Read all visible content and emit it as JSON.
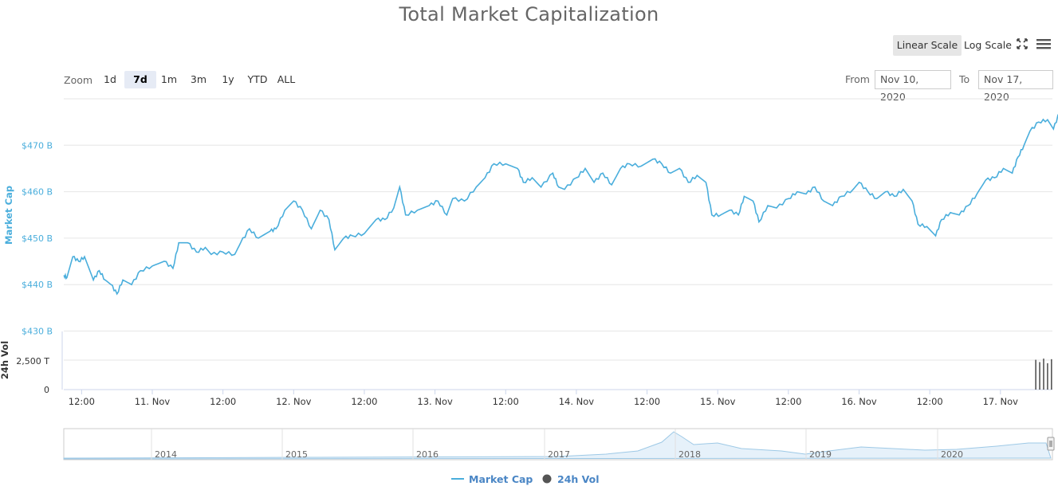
{
  "title": "Total Market Capitalization",
  "toolbar": {
    "linear_scale": "Linear Scale",
    "log_scale": "Log Scale",
    "expand_icon": "expand-arrows-icon",
    "menu_icon": "hamburger-menu-icon"
  },
  "zoom": {
    "label": "Zoom",
    "buttons": [
      "1d",
      "7d",
      "1m",
      "3m",
      "1y",
      "YTD",
      "ALL"
    ],
    "active": "7d"
  },
  "range": {
    "from_label": "From",
    "from_value": "Nov 10, 2020",
    "to_label": "To",
    "to_value": "Nov 17, 2020"
  },
  "legend": {
    "market_cap": "Market Cap",
    "vol": "24h Vol"
  },
  "colors": {
    "market_cap": "#4aaedc",
    "volume": "#555555",
    "axis_text": "#4aaedc",
    "navigator_fill": "#e6f1fa"
  },
  "navigator": {
    "years": [
      "2014",
      "2015",
      "2016",
      "2017",
      "2018",
      "2019",
      "2020"
    ]
  },
  "chart_data": {
    "type": "line",
    "title": "Total Market Capitalization",
    "y_axis": {
      "label": "Market Cap",
      "ticks": [
        "$470 B",
        "$460 B",
        "$450 B",
        "$440 B",
        "$430 B"
      ],
      "range": [
        430,
        480
      ],
      "unit": "B"
    },
    "vol_axis": {
      "label": "24h Vol",
      "ticks": [
        "2,500 T",
        "0"
      ]
    },
    "x_axis": {
      "ticks": [
        "12:00",
        "11. Nov",
        "12:00",
        "12. Nov",
        "12:00",
        "13. Nov",
        "12:00",
        "14. Nov",
        "12:00",
        "15. Nov",
        "12:00",
        "16. Nov",
        "12:00",
        "17. Nov"
      ],
      "range_days": [
        "Nov 10, 2020 ~09:00",
        "Nov 17, 2020 ~17:00"
      ]
    },
    "series": [
      {
        "name": "Market Cap",
        "points": [
          [
            "Nov 10 09:00",
            442
          ],
          [
            "Nov 10 09:30",
            441.5
          ],
          [
            "Nov 10 10:30",
            446
          ],
          [
            "Nov 10 11:30",
            445
          ],
          [
            "Nov 10 12:30",
            446
          ],
          [
            "Nov 10 14:00",
            441
          ],
          [
            "Nov 10 15:00",
            443
          ],
          [
            "Nov 10 16:00",
            441
          ],
          [
            "Nov 10 17:00",
            440
          ],
          [
            "Nov 10 18:00",
            438
          ],
          [
            "Nov 10 19:00",
            441
          ],
          [
            "Nov 10 20:30",
            440
          ],
          [
            "Nov 10 22:00",
            443
          ],
          [
            "Nov 11 00:00",
            444
          ],
          [
            "Nov 11 02:00",
            445
          ],
          [
            "Nov 11 03:30",
            443.5
          ],
          [
            "Nov 11 04:30",
            449
          ],
          [
            "Nov 11 06:00",
            449
          ],
          [
            "Nov 11 07:30",
            447
          ],
          [
            "Nov 11 09:00",
            448
          ],
          [
            "Nov 11 10:00",
            446.5
          ],
          [
            "Nov 11 12:00",
            447
          ],
          [
            "Nov 11 14:00",
            446.5
          ],
          [
            "Nov 11 15:00",
            449
          ],
          [
            "Nov 11 16:30",
            452
          ],
          [
            "Nov 11 18:00",
            450
          ],
          [
            "Nov 11 20:00",
            451.5
          ],
          [
            "Nov 11 21:00",
            452
          ],
          [
            "Nov 11 22:30",
            456
          ],
          [
            "Nov 12 00:00",
            458
          ],
          [
            "Nov 12 01:30",
            456
          ],
          [
            "Nov 12 03:00",
            452
          ],
          [
            "Nov 12 04:30",
            456
          ],
          [
            "Nov 12 06:00",
            454
          ],
          [
            "Nov 12 07:00",
            447.5
          ],
          [
            "Nov 12 08:30",
            450
          ],
          [
            "Nov 12 10:00",
            450.5
          ],
          [
            "Nov 12 12:00",
            451
          ],
          [
            "Nov 12 14:00",
            454
          ],
          [
            "Nov 12 15:30",
            454
          ],
          [
            "Nov 12 17:00",
            456.5
          ],
          [
            "Nov 12 18:00",
            461
          ],
          [
            "Nov 12 19:00",
            455
          ],
          [
            "Nov 12 21:00",
            456
          ],
          [
            "Nov 12 23:00",
            457
          ],
          [
            "Nov 13 00:30",
            458
          ],
          [
            "Nov 13 02:00",
            455
          ],
          [
            "Nov 13 03:00",
            458.5
          ],
          [
            "Nov 13 05:00",
            458
          ],
          [
            "Nov 13 07:00",
            461
          ],
          [
            "Nov 13 08:30",
            463
          ],
          [
            "Nov 13 10:00",
            466
          ],
          [
            "Nov 13 12:00",
            466
          ],
          [
            "Nov 13 14:00",
            465
          ],
          [
            "Nov 13 15:00",
            462
          ],
          [
            "Nov 13 16:30",
            463
          ],
          [
            "Nov 13 18:00",
            461
          ],
          [
            "Nov 13 20:00",
            464
          ],
          [
            "Nov 13 21:00",
            461
          ],
          [
            "Nov 13 22:00",
            460.5
          ],
          [
            "Nov 14 00:00",
            463
          ],
          [
            "Nov 14 01:30",
            465
          ],
          [
            "Nov 14 03:00",
            462
          ],
          [
            "Nov 14 04:30",
            464
          ],
          [
            "Nov 14 06:00",
            461.5
          ],
          [
            "Nov 14 07:30",
            465
          ],
          [
            "Nov 14 09:00",
            466
          ],
          [
            "Nov 14 11:00",
            465.5
          ],
          [
            "Nov 14 13:00",
            467
          ],
          [
            "Nov 14 14:30",
            466
          ],
          [
            "Nov 14 16:00",
            464
          ],
          [
            "Nov 14 17:30",
            465
          ],
          [
            "Nov 14 19:00",
            462
          ],
          [
            "Nov 14 20:30",
            463.5
          ],
          [
            "Nov 14 22:00",
            462
          ],
          [
            "Nov 14 23:00",
            455
          ],
          [
            "Nov 15 00:30",
            455
          ],
          [
            "Nov 15 02:00",
            456
          ],
          [
            "Nov 15 03:30",
            455
          ],
          [
            "Nov 15 04:30",
            459
          ],
          [
            "Nov 15 06:00",
            458
          ],
          [
            "Nov 15 07:00",
            453.5
          ],
          [
            "Nov 15 08:30",
            457
          ],
          [
            "Nov 15 10:00",
            456.5
          ],
          [
            "Nov 15 12:00",
            458.5
          ],
          [
            "Nov 15 13:30",
            460
          ],
          [
            "Nov 15 15:00",
            459.5
          ],
          [
            "Nov 15 16:30",
            461
          ],
          [
            "Nov 15 18:00",
            458
          ],
          [
            "Nov 15 19:30",
            457
          ],
          [
            "Nov 15 21:00",
            459
          ],
          [
            "Nov 15 23:00",
            460.5
          ],
          [
            "Nov 16 00:00",
            462
          ],
          [
            "Nov 16 01:30",
            460
          ],
          [
            "Nov 16 03:00",
            458.5
          ],
          [
            "Nov 16 04:30",
            460
          ],
          [
            "Nov 16 06:00",
            459
          ],
          [
            "Nov 16 07:30",
            460.5
          ],
          [
            "Nov 16 09:00",
            458
          ],
          [
            "Nov 16 10:00",
            453
          ],
          [
            "Nov 16 11:30",
            452.5
          ],
          [
            "Nov 16 13:00",
            450.5
          ],
          [
            "Nov 16 14:00",
            454
          ],
          [
            "Nov 16 15:30",
            455.5
          ],
          [
            "Nov 16 17:00",
            455
          ],
          [
            "Nov 16 18:30",
            457
          ],
          [
            "Nov 16 20:00",
            459.5
          ],
          [
            "Nov 16 21:30",
            462.5
          ],
          [
            "Nov 16 23:00",
            463
          ],
          [
            "Nov 17 00:30",
            465
          ],
          [
            "Nov 17 02:00",
            464
          ],
          [
            "Nov 17 03:00",
            467.5
          ],
          [
            "Nov 17 04:00",
            470
          ],
          [
            "Nov 17 05:00",
            473
          ],
          [
            "Nov 17 06:30",
            475
          ],
          [
            "Nov 17 08:00",
            475.5
          ],
          [
            "Nov 17 09:00",
            473.5
          ],
          [
            "Nov 17 10:00",
            477
          ],
          [
            "Nov 17 11:30",
            476
          ],
          [
            "Nov 17 13:00",
            475
          ],
          [
            "Nov 17 14:30",
            474
          ],
          [
            "Nov 17 16:00",
            475
          ],
          [
            "Nov 17 17:00",
            476
          ]
        ]
      },
      {
        "name": "24h Vol",
        "points": [
          [
            "Nov 17 06:00",
            2600
          ],
          [
            "Nov 17 06:40",
            2400
          ],
          [
            "Nov 17 07:20",
            2700
          ],
          [
            "Nov 17 08:00",
            2300
          ],
          [
            "Nov 17 08:40",
            2650
          ]
        ]
      }
    ]
  }
}
